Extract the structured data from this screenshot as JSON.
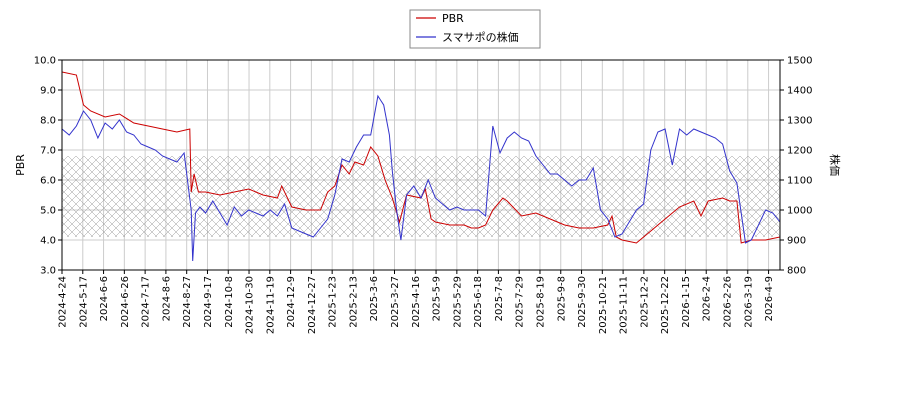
{
  "chart_data": {
    "type": "line",
    "x_ticks": [
      "2024-4-24",
      "2024-5-17",
      "2024-6-6",
      "2024-6-26",
      "2024-7-17",
      "2024-8-6",
      "2024-8-27",
      "2024-9-17",
      "2024-10-8",
      "2024-10-30",
      "2024-11-19",
      "2024-12-9",
      "2024-12-27",
      "2025-1-23",
      "2025-2-13",
      "2025-3-6",
      "2025-3-27",
      "2025-4-16",
      "2025-5-9",
      "2025-5-29",
      "2025-6-18",
      "2025-7-8",
      "2025-7-29",
      "2025-8-19",
      "2025-9-8",
      "2025-9-30",
      "2025-10-21",
      "2025-11-11",
      "2025-12-2",
      "2025-12-22",
      "2026-1-15",
      "2026-2-4",
      "2026-2-26",
      "2026-3-19",
      "2026-4-9"
    ],
    "y_left": {
      "label": "PBR",
      "min": 3.0,
      "max": 10.0,
      "ticks": [
        "3.0",
        "4.0",
        "5.0",
        "6.0",
        "7.0",
        "8.0",
        "9.0",
        "10.0"
      ]
    },
    "y_right": {
      "label": "株価",
      "min": 800,
      "max": 1500,
      "ticks": [
        "800",
        "900",
        "1000",
        "1100",
        "1200",
        "1300",
        "1400",
        "1500"
      ]
    },
    "band": {
      "low": 4.1,
      "high": 6.8
    },
    "grid": true,
    "legend_position": "top-center",
    "series": [
      {
        "name": "PBR",
        "color": "#cc0000",
        "axis": "left",
        "values": [
          [
            0,
            9.6
          ],
          [
            1,
            9.5
          ],
          [
            1.5,
            8.5
          ],
          [
            2,
            8.3
          ],
          [
            3,
            8.1
          ],
          [
            4,
            8.2
          ],
          [
            5,
            7.9
          ],
          [
            6,
            7.8
          ],
          [
            7,
            7.7
          ],
          [
            8,
            7.6
          ],
          [
            8.9,
            7.7
          ],
          [
            9.0,
            5.6
          ],
          [
            9.2,
            6.2
          ],
          [
            9.5,
            5.6
          ],
          [
            10,
            5.6
          ],
          [
            11,
            5.5
          ],
          [
            12,
            5.6
          ],
          [
            13,
            5.7
          ],
          [
            14,
            5.5
          ],
          [
            15,
            5.4
          ],
          [
            15.3,
            5.8
          ],
          [
            16,
            5.1
          ],
          [
            17,
            5.0
          ],
          [
            18,
            5.0
          ],
          [
            18.5,
            5.6
          ],
          [
            19,
            5.8
          ],
          [
            19.5,
            6.5
          ],
          [
            20,
            6.2
          ],
          [
            20.4,
            6.6
          ],
          [
            21,
            6.5
          ],
          [
            21.5,
            7.1
          ],
          [
            22,
            6.8
          ],
          [
            22.5,
            6.0
          ],
          [
            23,
            5.4
          ],
          [
            23.5,
            4.6
          ],
          [
            24,
            5.5
          ],
          [
            25,
            5.4
          ],
          [
            25.3,
            5.7
          ],
          [
            25.7,
            4.7
          ],
          [
            26,
            4.6
          ],
          [
            27,
            4.5
          ],
          [
            28,
            4.5
          ],
          [
            28.5,
            4.4
          ],
          [
            29,
            4.4
          ],
          [
            29.5,
            4.5
          ],
          [
            30,
            5.0
          ],
          [
            30.7,
            5.4
          ],
          [
            31,
            5.3
          ],
          [
            32,
            4.8
          ],
          [
            33,
            4.9
          ],
          [
            34,
            4.7
          ],
          [
            35,
            4.5
          ],
          [
            36,
            4.4
          ],
          [
            37,
            4.4
          ],
          [
            38,
            4.5
          ],
          [
            38.3,
            4.8
          ],
          [
            38.6,
            4.1
          ],
          [
            39,
            4.0
          ],
          [
            40,
            3.9
          ],
          [
            41,
            4.3
          ],
          [
            42,
            4.7
          ],
          [
            43,
            5.1
          ],
          [
            44,
            5.3
          ],
          [
            44.5,
            4.8
          ],
          [
            45,
            5.3
          ],
          [
            46,
            5.4
          ],
          [
            46.5,
            5.3
          ],
          [
            47,
            5.3
          ],
          [
            47.3,
            3.9
          ],
          [
            48,
            4.0
          ],
          [
            49,
            4.0
          ],
          [
            50,
            4.1
          ]
        ]
      },
      {
        "name": "スマサポの株価",
        "color": "#3333cc",
        "axis": "right",
        "values": [
          [
            0,
            1270
          ],
          [
            0.5,
            1250
          ],
          [
            1,
            1280
          ],
          [
            1.5,
            1330
          ],
          [
            2,
            1300
          ],
          [
            2.5,
            1240
          ],
          [
            3,
            1290
          ],
          [
            3.5,
            1270
          ],
          [
            4,
            1300
          ],
          [
            4.5,
            1260
          ],
          [
            5,
            1250
          ],
          [
            5.5,
            1220
          ],
          [
            6,
            1210
          ],
          [
            6.5,
            1200
          ],
          [
            7,
            1180
          ],
          [
            7.5,
            1170
          ],
          [
            8,
            1160
          ],
          [
            8.5,
            1190
          ],
          [
            9.0,
            1000
          ],
          [
            9.1,
            830
          ],
          [
            9.3,
            990
          ],
          [
            9.6,
            1010
          ],
          [
            10,
            990
          ],
          [
            10.5,
            1030
          ],
          [
            11,
            990
          ],
          [
            11.5,
            950
          ],
          [
            12,
            1010
          ],
          [
            12.5,
            980
          ],
          [
            13,
            1000
          ],
          [
            13.5,
            990
          ],
          [
            14,
            980
          ],
          [
            14.5,
            1000
          ],
          [
            15,
            980
          ],
          [
            15.5,
            1020
          ],
          [
            16,
            940
          ],
          [
            16.5,
            930
          ],
          [
            17,
            920
          ],
          [
            17.5,
            910
          ],
          [
            18,
            940
          ],
          [
            18.5,
            970
          ],
          [
            19,
            1050
          ],
          [
            19.5,
            1170
          ],
          [
            20,
            1160
          ],
          [
            20.5,
            1210
          ],
          [
            21,
            1250
          ],
          [
            21.5,
            1250
          ],
          [
            22,
            1380
          ],
          [
            22.4,
            1350
          ],
          [
            22.8,
            1250
          ],
          [
            23,
            1130
          ],
          [
            23.3,
            1000
          ],
          [
            23.6,
            900
          ],
          [
            24,
            1050
          ],
          [
            24.5,
            1080
          ],
          [
            25,
            1040
          ],
          [
            25.5,
            1100
          ],
          [
            26,
            1040
          ],
          [
            26.5,
            1020
          ],
          [
            27,
            1000
          ],
          [
            27.5,
            1010
          ],
          [
            28,
            1000
          ],
          [
            28.5,
            1000
          ],
          [
            29,
            1000
          ],
          [
            29.5,
            980
          ],
          [
            30,
            1280
          ],
          [
            30.5,
            1190
          ],
          [
            31,
            1240
          ],
          [
            31.5,
            1260
          ],
          [
            32,
            1240
          ],
          [
            32.5,
            1230
          ],
          [
            33,
            1180
          ],
          [
            33.5,
            1150
          ],
          [
            34,
            1120
          ],
          [
            34.5,
            1120
          ],
          [
            35,
            1100
          ],
          [
            35.5,
            1080
          ],
          [
            36,
            1100
          ],
          [
            36.5,
            1100
          ],
          [
            37,
            1140
          ],
          [
            37.5,
            1000
          ],
          [
            38,
            970
          ],
          [
            38.5,
            910
          ],
          [
            39,
            920
          ],
          [
            39.5,
            960
          ],
          [
            40,
            1000
          ],
          [
            40.5,
            1020
          ],
          [
            41,
            1200
          ],
          [
            41.5,
            1260
          ],
          [
            42,
            1270
          ],
          [
            42.5,
            1150
          ],
          [
            43,
            1270
          ],
          [
            43.5,
            1250
          ],
          [
            44,
            1270
          ],
          [
            44.5,
            1260
          ],
          [
            45,
            1250
          ],
          [
            45.5,
            1240
          ],
          [
            46,
            1220
          ],
          [
            46.5,
            1130
          ],
          [
            47,
            1090
          ],
          [
            47.3,
            990
          ],
          [
            47.6,
            890
          ],
          [
            48,
            900
          ],
          [
            48.5,
            950
          ],
          [
            49,
            1000
          ],
          [
            49.5,
            990
          ],
          [
            50,
            960
          ]
        ]
      }
    ]
  }
}
